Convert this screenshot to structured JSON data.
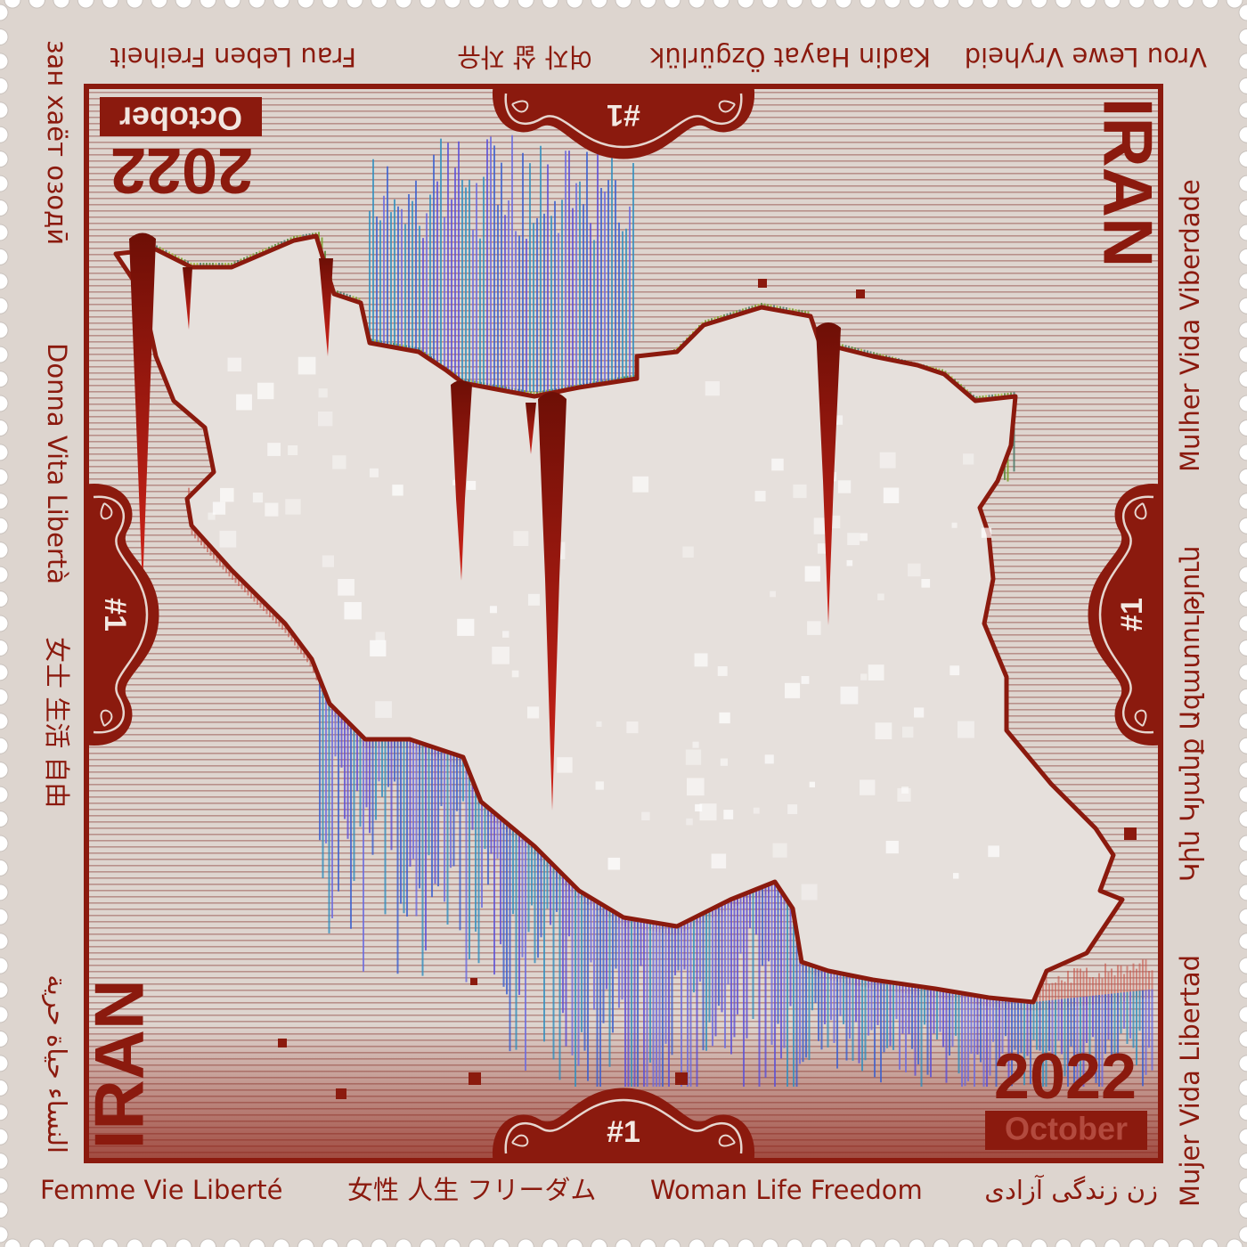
{
  "stamp": {
    "country": "IRAN",
    "year": "2022",
    "month": "October",
    "number": "#1",
    "slogans": {
      "bottom": [
        "Femme Vie Liberté",
        "女性 人生 フリーダム",
        "Woman Life Freedom",
        "زن زندگی آزادی"
      ],
      "top": [
        "Vrou Lewe Vryheid",
        "Kadin Hayat Özgürlük",
        "여자 삶 자유",
        "Frau Leben Freiheit"
      ],
      "left": [
        "зан хаёт озодӣ",
        "Donna Vita Libertà",
        "女士 生活 自由",
        "النساء حياة حرية"
      ],
      "right": [
        "Mujer Vida Libertad",
        "Կին Կյանք Ազատություն",
        "Mulher Vida Viberdade"
      ]
    }
  }
}
